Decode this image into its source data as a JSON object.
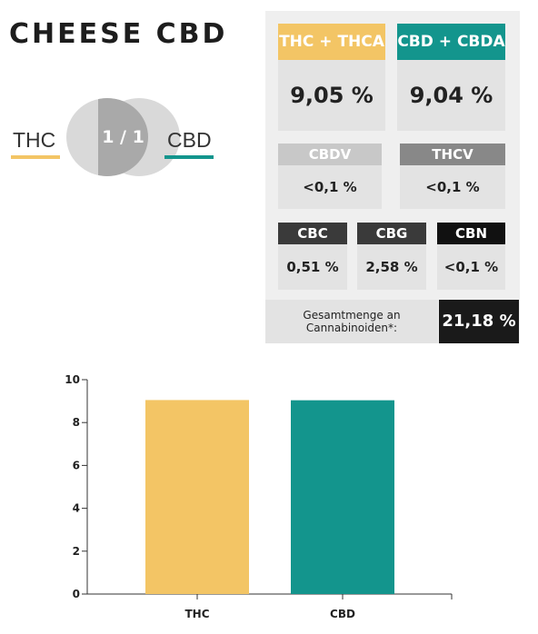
{
  "title": "CHEESE CBD",
  "ratio": {
    "left_label": "THC",
    "right_label": "CBD",
    "value": "1 / 1"
  },
  "colors": {
    "thc": "#f3c565",
    "cbd": "#13958d",
    "gray_light": "#c8c8c8",
    "gray_mid": "#888888",
    "gray_dark": "#3a3a3a",
    "black": "#111111"
  },
  "cannabinoids": {
    "thc_thca": {
      "label": "THC + THCA",
      "value": "9,05 %"
    },
    "cbd_cbda": {
      "label": "CBD + CBDA",
      "value": "9,04 %"
    },
    "cbdv": {
      "label": "CBDV",
      "value": "<0,1 %"
    },
    "thcv": {
      "label": "THCV",
      "value": "<0,1 %"
    },
    "cbc": {
      "label": "CBC",
      "value": "0,51 %"
    },
    "cbg": {
      "label": "CBG",
      "value": "2,58 %"
    },
    "cbn": {
      "label": "CBN",
      "value": "<0,1 %"
    }
  },
  "total": {
    "label_line1": "Gesamtmenge an",
    "label_line2": "Cannabinoiden*:",
    "value": "21,18 %"
  },
  "chart_data": {
    "type": "bar",
    "categories": [
      "THC",
      "CBD"
    ],
    "values": [
      9.05,
      9.04
    ],
    "colors": [
      "#f3c565",
      "#13958d"
    ],
    "title": "",
    "xlabel": "",
    "ylabel": "",
    "ylim": [
      0,
      10
    ],
    "yticks": [
      0,
      2,
      4,
      6,
      8,
      10
    ],
    "grid": false
  }
}
